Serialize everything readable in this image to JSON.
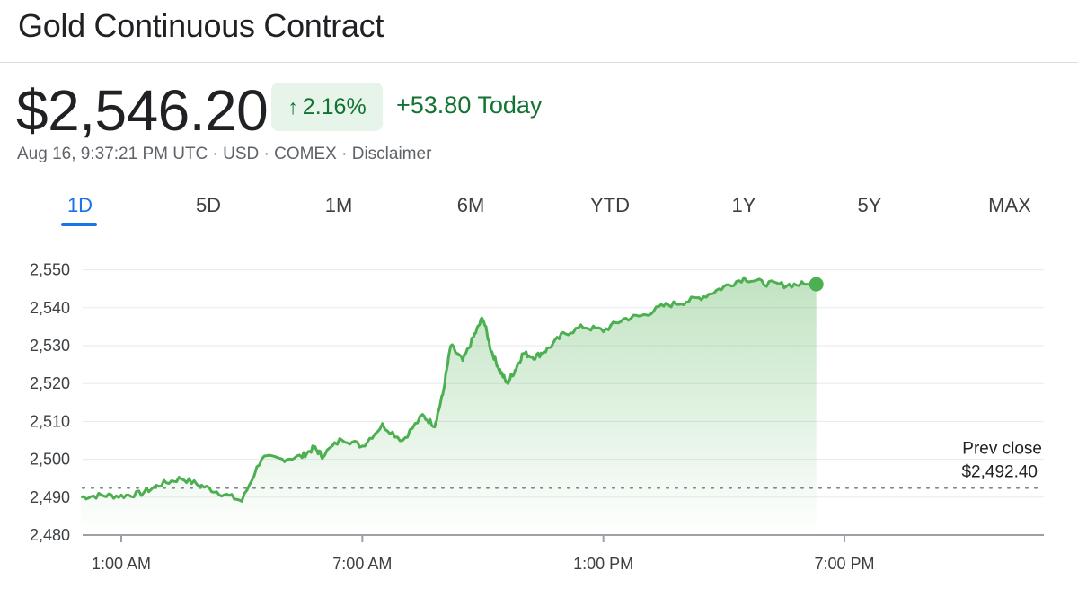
{
  "header": {
    "title": "Gold Continuous Contract"
  },
  "quote": {
    "price": "$2,546.20",
    "change_pct": "2.16%",
    "change_arrow": "up-arrow-icon",
    "change_abs": "+53.80 Today",
    "meta": "Aug 16, 9:37:21 PM UTC · USD · COMEX · Disclaimer"
  },
  "tabs": [
    {
      "label": "1D",
      "active": true
    },
    {
      "label": "5D",
      "active": false
    },
    {
      "label": "1M",
      "active": false
    },
    {
      "label": "6M",
      "active": false
    },
    {
      "label": "YTD",
      "active": false
    },
    {
      "label": "1Y",
      "active": false
    },
    {
      "label": "5Y",
      "active": false
    },
    {
      "label": "MAX",
      "active": false
    }
  ],
  "colors": {
    "line": "#4caf50",
    "positive": "#137333",
    "badge_bg": "#e6f4ea",
    "accent": "#1a73e8"
  },
  "chart_data": {
    "type": "area",
    "x_unit": "hours (UTC)",
    "ylim": [
      2480,
      2552
    ],
    "xlim": [
      0,
      24
    ],
    "yticks": [
      2480,
      2490,
      2500,
      2510,
      2520,
      2530,
      2540,
      2550
    ],
    "ytick_labels": [
      "2,480",
      "2,490",
      "2,500",
      "2,510",
      "2,520",
      "2,530",
      "2,540",
      "2,550"
    ],
    "xticks": [
      1,
      7,
      13,
      19
    ],
    "xtick_labels": [
      "1:00 AM",
      "7:00 AM",
      "1:00 PM",
      "7:00 PM"
    ],
    "prev_close": 2492.4,
    "prev_close_label": "Prev close",
    "prev_close_value": "$2,492.40",
    "series": [
      {
        "x": [
          0.0,
          0.5,
          1.0,
          1.5,
          2.0,
          2.5,
          3.0,
          3.5,
          4.0,
          4.5,
          5.0,
          5.5,
          5.8,
          6.0,
          6.5,
          7.0,
          7.5,
          8.0,
          8.5,
          8.8,
          9.0,
          9.2,
          9.5,
          9.8,
          10.0,
          10.2,
          10.4,
          10.6,
          10.8,
          11.0,
          11.3,
          11.6,
          12.0,
          12.5,
          13.0,
          13.5,
          14.0,
          14.5,
          15.0,
          15.5,
          16.0,
          16.5,
          17.0,
          17.5,
          18.0,
          18.3
        ],
        "y": [
          2490.0,
          2490.5,
          2490.3,
          2491.0,
          2493.5,
          2495.0,
          2493.0,
          2491.0,
          2489.0,
          2500.5,
          2500.0,
          2500.8,
          2503.0,
          2501.0,
          2505.5,
          2503.5,
          2509.0,
          2505.0,
          2511.5,
          2509.0,
          2517.0,
          2530.0,
          2526.0,
          2533.0,
          2537.5,
          2529.0,
          2524.0,
          2520.0,
          2523.5,
          2528.0,
          2527.0,
          2529.0,
          2533.0,
          2535.0,
          2534.0,
          2537.0,
          2538.0,
          2540.5,
          2541.5,
          2543.0,
          2545.5,
          2547.8,
          2546.5,
          2546.0,
          2546.2,
          2546.2
        ]
      }
    ]
  }
}
